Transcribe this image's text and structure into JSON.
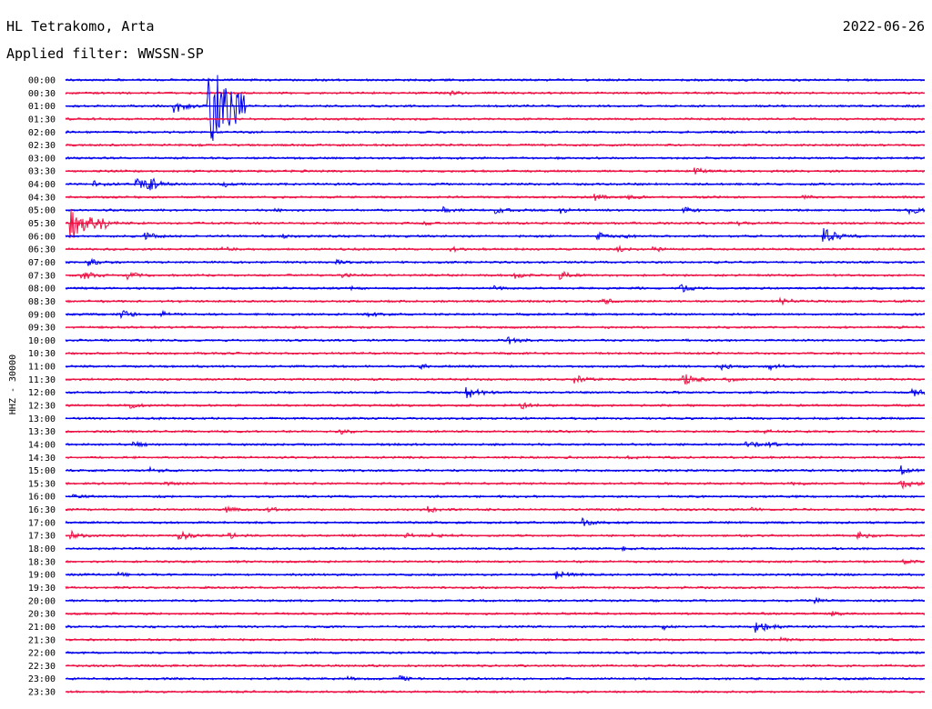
{
  "header": {
    "station": "HL Tetrakomo, Arta",
    "filter": "Applied filter: WWSSN-SP",
    "date": "2022-06-26"
  },
  "colors": {
    "even_trace": "#0000ee",
    "odd_trace": "#ee1144",
    "text": "#000000"
  },
  "chart_data": {
    "type": "line",
    "title": "HL Tetrakomo, Arta",
    "subtitle": "Applied filter: WWSSN-SP",
    "ylabel": "HHZ - 30000",
    "xlabel": "",
    "grid": false,
    "row_labels": [
      "00:00",
      "00:30",
      "01:00",
      "01:30",
      "02:00",
      "02:30",
      "03:00",
      "03:30",
      "04:00",
      "04:30",
      "05:00",
      "05:30",
      "06:00",
      "06:30",
      "07:00",
      "07:30",
      "08:00",
      "08:30",
      "09:00",
      "09:30",
      "10:00",
      "10:30",
      "11:00",
      "11:30",
      "12:00",
      "12:30",
      "13:00",
      "13:30",
      "14:00",
      "14:30",
      "15:00",
      "15:30",
      "16:00",
      "16:30",
      "17:00",
      "17:30",
      "18:00",
      "18:30",
      "19:00",
      "19:30",
      "20:00",
      "20:30",
      "21:00",
      "21:30",
      "22:00",
      "22:30",
      "23:00",
      "23:30"
    ],
    "events": [
      {
        "row": "00:30",
        "minute": 13.5,
        "amplitude": 0.3
      },
      {
        "row": "01:00",
        "minute": 3.8,
        "amplitude": 1.3
      },
      {
        "row": "01:00",
        "minute": 5.0,
        "amplitude": 8.0
      },
      {
        "row": "03:30",
        "minute": 22.0,
        "amplitude": 0.6
      },
      {
        "row": "04:00",
        "minute": 1.0,
        "amplitude": 0.6
      },
      {
        "row": "04:00",
        "minute": 2.5,
        "amplitude": 1.0
      },
      {
        "row": "04:00",
        "minute": 2.9,
        "amplitude": 1.2
      },
      {
        "row": "04:00",
        "minute": 5.5,
        "amplitude": 0.5
      },
      {
        "row": "04:30",
        "minute": 18.5,
        "amplitude": 0.6
      },
      {
        "row": "04:30",
        "minute": 19.7,
        "amplitude": 0.3
      },
      {
        "row": "04:30",
        "minute": 25.8,
        "amplitude": 0.3
      },
      {
        "row": "05:00",
        "minute": 7.2,
        "amplitude": 0.3
      },
      {
        "row": "05:00",
        "minute": 13.2,
        "amplitude": 0.6
      },
      {
        "row": "05:00",
        "minute": 15.0,
        "amplitude": 0.6
      },
      {
        "row": "05:00",
        "minute": 17.3,
        "amplitude": 0.5
      },
      {
        "row": "05:00",
        "minute": 21.6,
        "amplitude": 0.5
      },
      {
        "row": "05:00",
        "minute": 29.5,
        "amplitude": 0.7
      },
      {
        "row": "05:30",
        "minute": 0.2,
        "amplitude": 3.2
      },
      {
        "row": "05:30",
        "minute": 1.3,
        "amplitude": 0.6
      },
      {
        "row": "05:30",
        "minute": 12.5,
        "amplitude": 0.5
      },
      {
        "row": "05:30",
        "minute": 23.5,
        "amplitude": 0.3
      },
      {
        "row": "06:00",
        "minute": 2.8,
        "amplitude": 0.8
      },
      {
        "row": "06:00",
        "minute": 7.6,
        "amplitude": 0.3
      },
      {
        "row": "06:00",
        "minute": 18.6,
        "amplitude": 0.7
      },
      {
        "row": "06:00",
        "minute": 19.6,
        "amplitude": 0.4
      },
      {
        "row": "06:00",
        "minute": 26.5,
        "amplitude": 1.5
      },
      {
        "row": "06:30",
        "minute": 5.5,
        "amplitude": 0.4
      },
      {
        "row": "06:30",
        "minute": 13.5,
        "amplitude": 0.4
      },
      {
        "row": "06:30",
        "minute": 19.3,
        "amplitude": 0.6
      },
      {
        "row": "06:30",
        "minute": 20.5,
        "amplitude": 0.5
      },
      {
        "row": "07:00",
        "minute": 0.8,
        "amplitude": 0.7
      },
      {
        "row": "07:00",
        "minute": 9.5,
        "amplitude": 0.3
      },
      {
        "row": "07:30",
        "minute": 0.6,
        "amplitude": 1.0
      },
      {
        "row": "07:30",
        "minute": 2.2,
        "amplitude": 0.6
      },
      {
        "row": "07:30",
        "minute": 9.7,
        "amplitude": 0.3
      },
      {
        "row": "07:30",
        "minute": 15.7,
        "amplitude": 0.5
      },
      {
        "row": "07:30",
        "minute": 17.3,
        "amplitude": 0.7
      },
      {
        "row": "08:00",
        "minute": 10.0,
        "amplitude": 0.3
      },
      {
        "row": "08:00",
        "minute": 15.0,
        "amplitude": 0.3
      },
      {
        "row": "08:00",
        "minute": 21.5,
        "amplitude": 0.9
      },
      {
        "row": "08:30",
        "minute": 18.8,
        "amplitude": 0.6
      },
      {
        "row": "08:30",
        "minute": 25.0,
        "amplitude": 0.6
      },
      {
        "row": "09:00",
        "minute": 2.0,
        "amplitude": 0.7
      },
      {
        "row": "09:00",
        "minute": 3.4,
        "amplitude": 0.5
      },
      {
        "row": "09:00",
        "minute": 10.6,
        "amplitude": 0.4
      },
      {
        "row": "10:00",
        "minute": 15.5,
        "amplitude": 0.6
      },
      {
        "row": "11:00",
        "minute": 12.4,
        "amplitude": 0.4
      },
      {
        "row": "11:00",
        "minute": 22.9,
        "amplitude": 0.6
      },
      {
        "row": "11:00",
        "minute": 24.6,
        "amplitude": 0.6
      },
      {
        "row": "11:30",
        "minute": 17.8,
        "amplitude": 0.8
      },
      {
        "row": "11:30",
        "minute": 21.6,
        "amplitude": 1.1
      },
      {
        "row": "11:30",
        "minute": 23.1,
        "amplitude": 0.4
      },
      {
        "row": "12:00",
        "minute": 14.0,
        "amplitude": 1.2
      },
      {
        "row": "12:00",
        "minute": 29.6,
        "amplitude": 0.9
      },
      {
        "row": "12:30",
        "minute": 2.3,
        "amplitude": 0.6
      },
      {
        "row": "12:30",
        "minute": 15.9,
        "amplitude": 0.7
      },
      {
        "row": "13:30",
        "minute": 9.6,
        "amplitude": 0.5
      },
      {
        "row": "13:30",
        "minute": 24.4,
        "amplitude": 0.3
      },
      {
        "row": "14:00",
        "minute": 2.4,
        "amplitude": 0.5
      },
      {
        "row": "14:00",
        "minute": 23.8,
        "amplitude": 0.8
      },
      {
        "row": "14:00",
        "minute": 24.6,
        "amplitude": 0.4
      },
      {
        "row": "14:30",
        "minute": 19.7,
        "amplitude": 0.3
      },
      {
        "row": "15:00",
        "minute": 3.0,
        "amplitude": 0.5
      },
      {
        "row": "15:00",
        "minute": 29.2,
        "amplitude": 0.8
      },
      {
        "row": "15:30",
        "minute": 3.5,
        "amplitude": 0.5
      },
      {
        "row": "15:30",
        "minute": 25.4,
        "amplitude": 0.4
      },
      {
        "row": "15:30",
        "minute": 29.2,
        "amplitude": 1.0
      },
      {
        "row": "16:00",
        "minute": 0.3,
        "amplitude": 0.3
      },
      {
        "row": "16:30",
        "minute": 5.6,
        "amplitude": 0.6
      },
      {
        "row": "16:30",
        "minute": 7.1,
        "amplitude": 0.4
      },
      {
        "row": "16:30",
        "minute": 12.7,
        "amplitude": 0.5
      },
      {
        "row": "16:30",
        "minute": 24.0,
        "amplitude": 0.3
      },
      {
        "row": "17:00",
        "minute": 18.1,
        "amplitude": 0.7
      },
      {
        "row": "17:30",
        "minute": 0.2,
        "amplitude": 0.8
      },
      {
        "row": "17:30",
        "minute": 4.0,
        "amplitude": 0.9
      },
      {
        "row": "17:30",
        "minute": 5.7,
        "amplitude": 0.6
      },
      {
        "row": "17:30",
        "minute": 11.9,
        "amplitude": 0.6
      },
      {
        "row": "17:30",
        "minute": 12.8,
        "amplitude": 0.4
      },
      {
        "row": "17:30",
        "minute": 27.7,
        "amplitude": 0.8
      },
      {
        "row": "18:00",
        "minute": 19.5,
        "amplitude": 0.3
      },
      {
        "row": "18:30",
        "minute": 29.3,
        "amplitude": 0.3
      },
      {
        "row": "19:00",
        "minute": 1.9,
        "amplitude": 0.3
      },
      {
        "row": "19:00",
        "minute": 17.1,
        "amplitude": 0.9
      },
      {
        "row": "20:00",
        "minute": 26.2,
        "amplitude": 0.7
      },
      {
        "row": "20:30",
        "minute": 26.8,
        "amplitude": 0.4
      },
      {
        "row": "21:00",
        "minute": 2.9,
        "amplitude": 0.3
      },
      {
        "row": "21:00",
        "minute": 20.9,
        "amplitude": 0.4
      },
      {
        "row": "21:00",
        "minute": 24.1,
        "amplitude": 1.3
      },
      {
        "row": "21:30",
        "minute": 25.0,
        "amplitude": 0.3
      },
      {
        "row": "23:00",
        "minute": 9.9,
        "amplitude": 0.3
      },
      {
        "row": "23:00",
        "minute": 11.7,
        "amplitude": 0.5
      }
    ]
  }
}
